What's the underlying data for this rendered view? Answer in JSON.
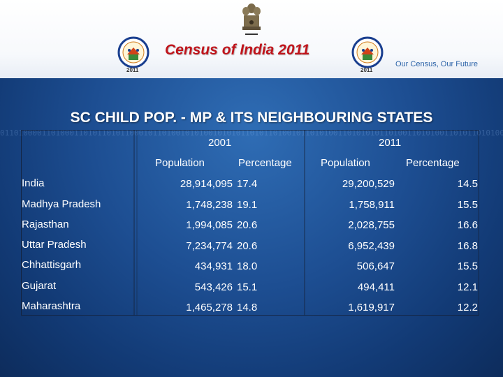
{
  "header": {
    "title": "Census of India  2011",
    "tagline": "Our Census,  Our Future",
    "logo_year": "2011",
    "emblem_icon": "national-emblem-icon",
    "logo_icon": "census-logo-icon"
  },
  "slide_title": "SC CHILD POP. - MP & ITS NEIGHBOURING STATES",
  "table": {
    "year_headers": [
      "2001",
      "2011"
    ],
    "column_headers": [
      "Population",
      "Percentage",
      "Population",
      "Percentage"
    ],
    "rows": [
      {
        "name": "India",
        "pop_2001": "28,914,095",
        "pct_2001": "17.4",
        "pop_2011": "29,200,529",
        "pct_2011": "14.5"
      },
      {
        "name": "Madhya Pradesh",
        "pop_2001": "1,748,238",
        "pct_2001": "19.1",
        "pop_2011": "1,758,911",
        "pct_2011": "15.5"
      },
      {
        "name": "Rajasthan",
        "pop_2001": "1,994,085",
        "pct_2001": "20.6",
        "pop_2011": "2,028,755",
        "pct_2011": "16.6"
      },
      {
        "name": "Uttar Pradesh",
        "pop_2001": "7,234,774",
        "pct_2001": "20.6",
        "pop_2011": "6,952,439",
        "pct_2011": "16.8"
      },
      {
        "name": "Chhattisgarh",
        "pop_2001": "434,931",
        "pct_2001": "18.0",
        "pop_2011": "506,647",
        "pct_2011": "15.5"
      },
      {
        "name": "Gujarat",
        "pop_2001": "543,426",
        "pct_2001": "15.1",
        "pop_2011": "494,411",
        "pct_2011": "12.1"
      },
      {
        "name": "Maharashtra",
        "pop_2001": "1,465,278",
        "pct_2001": "14.8",
        "pop_2011": "1,619,917",
        "pct_2011": "12.2"
      }
    ]
  },
  "colors": {
    "title_red": "#c0141b",
    "tagline_blue": "#2a62a8",
    "background_blue": "#1d4e92"
  }
}
